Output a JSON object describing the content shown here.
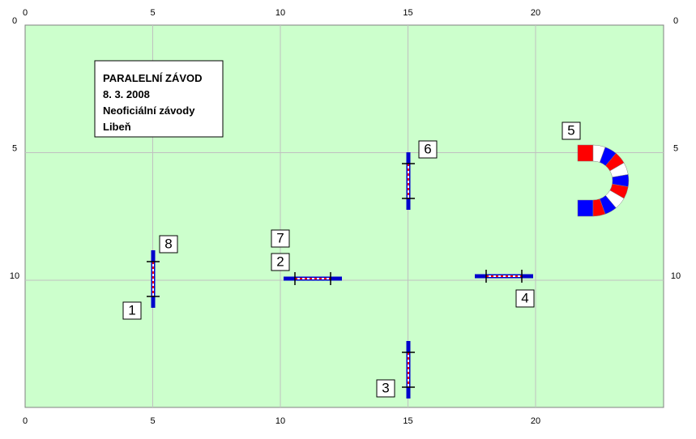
{
  "axes": {
    "xticks": [
      0,
      5,
      10,
      15,
      20
    ],
    "yticks": [
      0,
      5,
      10
    ]
  },
  "info": {
    "lines": [
      "PARALELNÍ ZÁVOD",
      "8. 3. 2008",
      "Neoficiální závody",
      "Libeň"
    ]
  },
  "obstacles": {
    "labels": [
      "1",
      "2",
      "3",
      "4",
      "5",
      "6",
      "7",
      "8"
    ]
  }
}
